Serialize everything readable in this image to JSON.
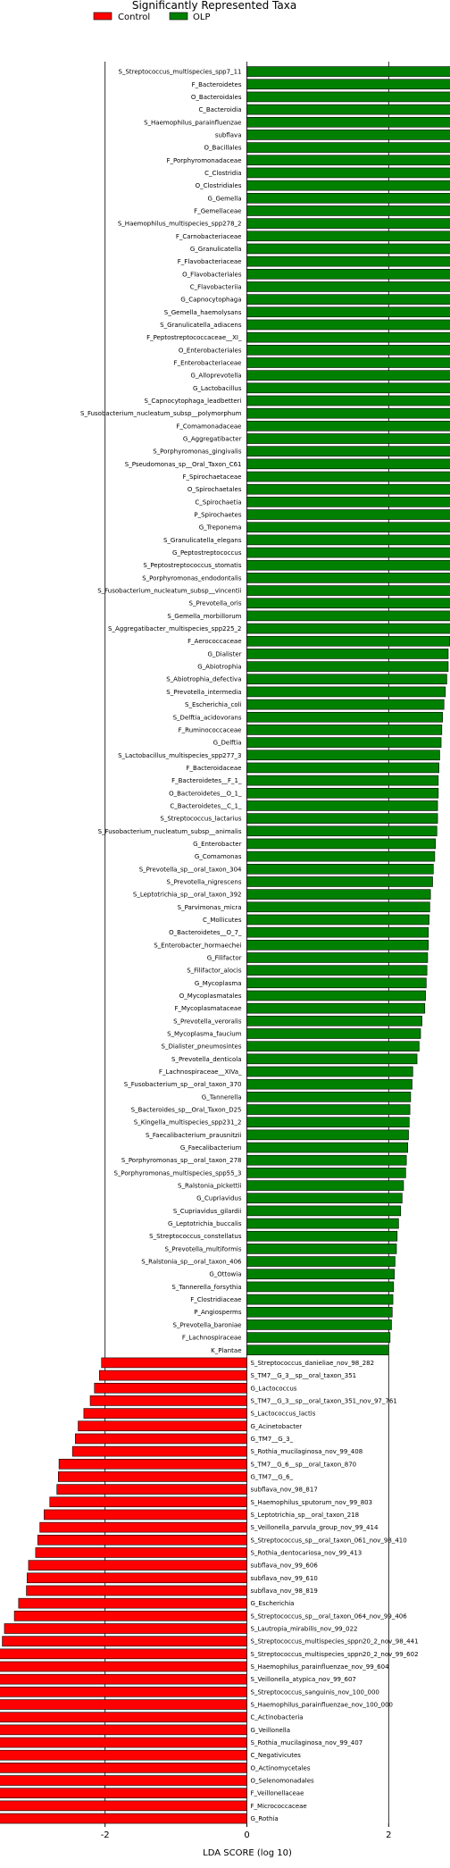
{
  "chart_data": {
    "type": "bar",
    "orientation": "horizontal",
    "title": "Significantly Represented Taxa",
    "xlabel": "LDA SCORE (log 10)",
    "xlim": [
      -4.3,
      4.3
    ],
    "xticks": [
      -4,
      -2,
      0,
      2,
      4
    ],
    "grid": "vertical lines at ticks",
    "legend": {
      "placement": "top-left",
      "entries": [
        {
          "name": "Control",
          "color": "#ff0000"
        },
        {
          "name": "OLP",
          "color": "#008000"
        }
      ]
    },
    "series": [
      {
        "name": "OLP",
        "color": "#008000",
        "label_side": "left",
        "categories": [
          "S_Streptococcus_multispecies_spp7_11",
          "F_Bacteroidetes",
          "O_Bacteroidales",
          "C_Bacteroidia",
          "S_Haemophilus_parainfluenzae",
          "subflava",
          "O_Bacillales",
          "F_Porphyromonadaceae",
          "C_Clostridia",
          "O_Clostridiales",
          "G_Gemella",
          "F_Gemellaceae",
          "S_Haemophilus_multispecies_spp278_2",
          "F_Carnobacteriaceae",
          "G_Granulicatella",
          "F_Flavobacteriaceae",
          "O_Flavobacteriales",
          "C_Flavobacteriia",
          "G_Capnocytophaga",
          "S_Gemella_haemolysans",
          "S_Granulicatella_adiacens",
          "F_Peptostreptococcaceae__XI_",
          "O_Enterobacteriales",
          "F_Enterobacteriaceae",
          "G_Alloprevotella",
          "G_Lactobacillus",
          "S_Capnocytophaga_leadbetteri",
          "S_Fusobacterium_nucleatum_subsp__polymorphum",
          "F_Comamonadaceae",
          "G_Aggregatibacter",
          "S_Porphyromonas_gingivalis",
          "S_Pseudomonas_sp__Oral_Taxon_C61",
          "F_Spirochaetaceae",
          "O_Spirochaetales",
          "C_Spirochaetia",
          "P_Spirochaetes",
          "G_Treponema",
          "S_Granulicatella_elegans",
          "G_Peptostreptococcus",
          "S_Peptostreptococcus_stomatis",
          "S_Porphyromonas_endodontalis",
          "S_Fusobacterium_nucleatum_subsp__vincentii",
          "S_Prevotella_oris",
          "S_Gemella_morbillorum",
          "S_Aggregatibacter_multispecies_spp225_2",
          "F_Aerococcaceae",
          "G_Dialister",
          "G_Abiotrophia",
          "S_Abiotrophia_defectiva",
          "S_Prevotella_intermedia",
          "S_Escherichia_coli",
          "S_Delftia_acidovorans",
          "F_Ruminococcaceae",
          "G_Delftia",
          "S_Lactobacillus_multispecies_spp277_3",
          "F_Bacteroidaceae",
          "F_Bacteroidetes__F_1_",
          "O_Bacteroidetes__O_1_",
          "C_Bacteroidetes__C_1_",
          "S_Streptococcus_lactarius",
          "S_Fusobacterium_nucleatum_subsp__animalis",
          "G_Enterobacter",
          "G_Comamonas",
          "S_Prevotella_sp__oral_taxon_304",
          "S_Prevotella_nigrescens",
          "S_Leptotrichia_sp__oral_taxon_392",
          "S_Parvimonas_micra",
          "C_Mollicutes",
          "O_Bacteroidetes__O_7_",
          "S_Enterobacter_hormaechei",
          "G_Filifactor",
          "S_Filifactor_alocis",
          "G_Mycoplasma",
          "O_Mycoplasmatales",
          "F_Mycoplasmataceae",
          "S_Prevotella_veroralis",
          "S_Mycoplasma_faucium",
          "S_Dialister_pneumosintes",
          "S_Prevotella_denticola",
          "F_Lachnospiraceae__XIVa_",
          "S_Fusobacterium_sp__oral_taxon_370",
          "G_Tannerella",
          "S_Bacteroides_sp__Oral_Taxon_D25",
          "S_Kingella_multispecies_spp231_2",
          "S_Faecalibacterium_prausnitzii",
          "G_Faecalibacterium",
          "S_Porphyromonas_sp__oral_taxon_278",
          "S_Porphyromonas_multispecies_spp55_3",
          "S_Ralstonia_pickettii",
          "G_Cupriavidus",
          "S_Cupriavidus_gilardii",
          "G_Leptotrichia_buccalis",
          "S_Streptococcus_constellatus",
          "S_Prevotella_multiformis",
          "S_Ralstonia_sp__oral_taxon_406",
          "G_Ottowia",
          "S_Tannerella_forsythia",
          "F_Clostridiaceae",
          "P_Angiosperms",
          "S_Prevotella_baroniae",
          "F_Lachnospiraceae",
          "K_Plantae"
        ],
        "values": [
          4.15,
          4.1,
          4.02,
          4.01,
          3.95,
          3.87,
          3.77,
          3.73,
          3.68,
          3.66,
          3.64,
          3.62,
          3.58,
          3.56,
          3.54,
          3.53,
          3.52,
          3.51,
          3.47,
          3.42,
          3.4,
          3.33,
          3.31,
          3.3,
          3.22,
          3.18,
          3.16,
          3.12,
          3.1,
          3.1,
          3.08,
          3.07,
          3.06,
          3.06,
          3.05,
          3.05,
          3.04,
          3.04,
          3.03,
          3.03,
          3.02,
          2.96,
          2.94,
          2.92,
          2.88,
          2.86,
          2.84,
          2.84,
          2.82,
          2.8,
          2.78,
          2.76,
          2.75,
          2.74,
          2.72,
          2.71,
          2.7,
          2.7,
          2.69,
          2.69,
          2.68,
          2.66,
          2.65,
          2.63,
          2.62,
          2.59,
          2.58,
          2.57,
          2.56,
          2.56,
          2.55,
          2.54,
          2.53,
          2.52,
          2.51,
          2.47,
          2.45,
          2.43,
          2.4,
          2.34,
          2.33,
          2.31,
          2.3,
          2.29,
          2.28,
          2.27,
          2.25,
          2.24,
          2.21,
          2.19,
          2.17,
          2.14,
          2.12,
          2.11,
          2.09,
          2.08,
          2.07,
          2.06,
          2.05,
          2.04,
          2.02,
          2.0
        ]
      },
      {
        "name": "Control",
        "color": "#ff0000",
        "label_side": "right",
        "categories": [
          "S_Streptococcus_danieliae_nov_98_282",
          "S_TM7__G_3__sp__oral_taxon_351",
          "G_Lactococcus",
          "S_TM7__G_3__sp__oral_taxon_351_nov_97_761",
          "S_Lactococcus_lactis",
          "G_Acinetobacter",
          "G_TM7__G_3_",
          "S_Rothia_mucilaginosa_nov_99_408",
          "S_TM7__G_6__sp__oral_taxon_870",
          "G_TM7__G_6_",
          "subflava_nov_98_817",
          "S_Haemophilus_sputorum_nov_99_803",
          "S_Leptotrichia_sp__oral_taxon_218",
          "S_Veillonella_parvula_group_nov_99_414",
          "S_Streptococcus_sp__oral_taxon_061_nov_98_410",
          "S_Rothia_dentocariosa_nov_99_413",
          "subflava_nov_99_606",
          "subflava_nov_99_610",
          "subflava_nov_98_819",
          "G_Escherichia",
          "S_Streptococcus_sp__oral_taxon_064_nov_99_406",
          "S_Lautropia_mirabilis_nov_99_022",
          "S_Streptococcus_multispecies_sppn20_2_nov_98_441",
          "S_Streptococcus_multispecies_sppn20_2_nov_99_602",
          "S_Haemophilus_parainfluenzae_nov_99_604",
          "S_Veillonella_atypica_nov_99_607",
          "S_Streptococcus_sanguinis_nov_100_000",
          "S_Haemophilus_parainfluenzae_nov_100_000",
          "C_Actinobacteria",
          "G_Veillonella",
          "S_Rothia_mucilaginosa_nov_99_407",
          "C_Negativicutes",
          "O_Actinomycetales",
          "O_Selenomonadales",
          "F_Veillonellaceae",
          "F_Micrococcaceae",
          "G_Rothia"
        ],
        "values": [
          -2.05,
          -2.08,
          -2.15,
          -2.21,
          -2.3,
          -2.38,
          -2.42,
          -2.46,
          -2.65,
          -2.66,
          -2.68,
          -2.78,
          -2.86,
          -2.92,
          -2.95,
          -2.98,
          -3.08,
          -3.1,
          -3.11,
          -3.22,
          -3.28,
          -3.42,
          -3.45,
          -3.52,
          -3.54,
          -3.58,
          -3.62,
          -3.75,
          -3.82,
          -3.86,
          -3.88,
          -3.9,
          -3.91,
          -3.91,
          -3.92,
          -4.0,
          -4.0
        ]
      }
    ]
  }
}
